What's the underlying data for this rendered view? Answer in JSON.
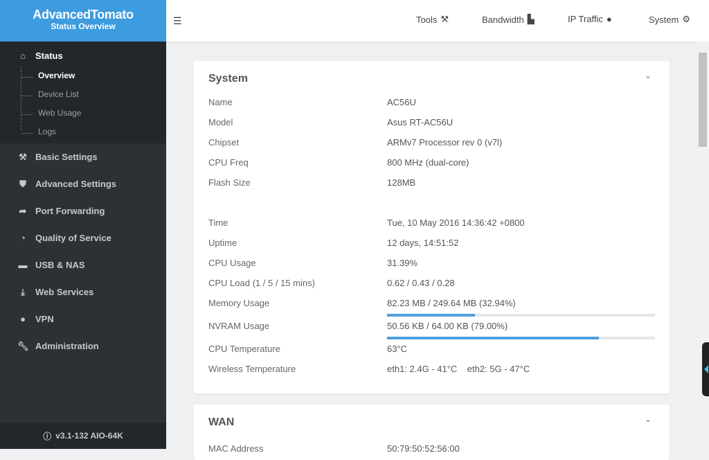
{
  "brand": {
    "title": "AdvancedTomato",
    "subtitle": "Status Overview"
  },
  "sidebar": {
    "status": {
      "label": "Status",
      "icon": "home-icon",
      "items": [
        {
          "label": "Overview",
          "active": true
        },
        {
          "label": "Device List"
        },
        {
          "label": "Web Usage"
        },
        {
          "label": "Logs"
        }
      ]
    },
    "items": [
      {
        "label": "Basic Settings",
        "icon": "tools-icon"
      },
      {
        "label": "Advanced Settings",
        "icon": "shield-icon"
      },
      {
        "label": "Port Forwarding",
        "icon": "arrow-icon"
      },
      {
        "label": "Quality of Service",
        "icon": "gauge-icon"
      },
      {
        "label": "USB & NAS",
        "icon": "drive-icon"
      },
      {
        "label": "Web Services",
        "icon": "download-icon"
      },
      {
        "label": "VPN",
        "icon": "globe-icon"
      },
      {
        "label": "Administration",
        "icon": "wrench-icon"
      }
    ],
    "version": "v3.1-132 AIO-64K"
  },
  "topbar": {
    "tools": "Tools",
    "bandwidth": "Bandwidth",
    "ip_traffic": "IP Traffic",
    "system": "System"
  },
  "system": {
    "title": "System",
    "rows": [
      {
        "label": "Name",
        "value": "AC56U"
      },
      {
        "label": "Model",
        "value": "Asus RT-AC56U"
      },
      {
        "label": "Chipset",
        "value": "ARMv7 Processor rev 0 (v7l)"
      },
      {
        "label": "CPU Freq",
        "value": "800 MHz (dual-core)"
      },
      {
        "label": "Flash Size",
        "value": "128MB"
      },
      {
        "label": "Time",
        "value": "Tue, 10 May 2016 14:36:42 +0800"
      },
      {
        "label": "Uptime",
        "value": "12 days, 14:51:52"
      },
      {
        "label": "CPU Usage",
        "value": "31.39%"
      },
      {
        "label": "CPU Load (1 / 5 / 15 mins)",
        "value": "0.62 / 0.43 / 0.28"
      },
      {
        "label": "Memory Usage",
        "value": "82.23 MB / 249.64 MB (32.94%)",
        "percent": 32.94
      },
      {
        "label": "NVRAM Usage",
        "value": "50.56 KB / 64.00 KB (79.00%)",
        "percent": 79.0
      },
      {
        "label": "CPU Temperature",
        "value": "63°C"
      },
      {
        "label": "Wireless Temperature",
        "value": "eth1: 2.4G - 41°C    eth2: 5G - 47°C"
      }
    ]
  },
  "wan": {
    "title": "WAN",
    "rows": [
      {
        "label": "MAC Address",
        "value": "50:79:50:52:56:00"
      }
    ]
  },
  "colors": {
    "brand": "#3d9be0",
    "sidebar": "#2c3136",
    "progress": "#4e9fe0"
  }
}
